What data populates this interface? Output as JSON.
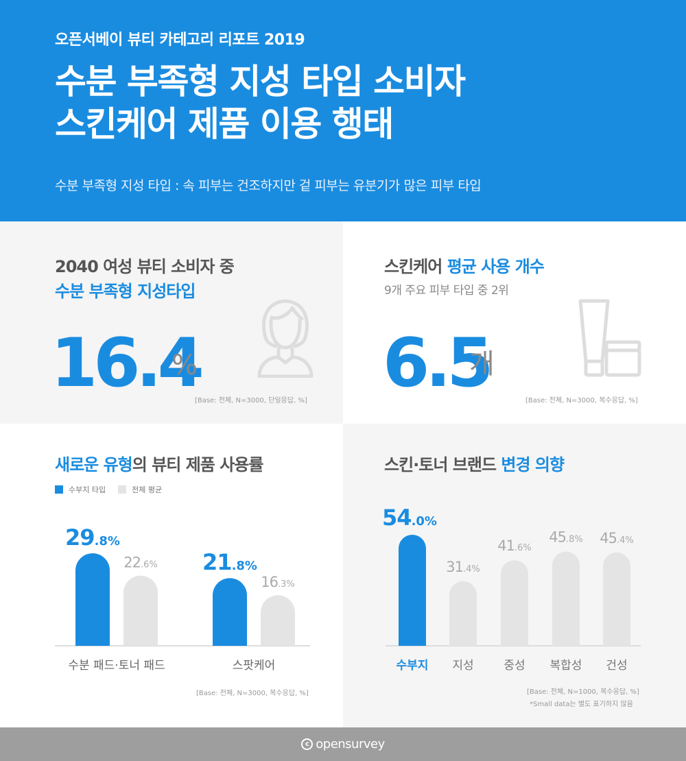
{
  "header": {
    "series": "오픈서베이 뷰티 카테고리 리포트 2019",
    "title_line1": "수분 부족형 지성 타입 소비자",
    "title_line2": "스킨케어 제품 이용 행태",
    "subtitle": "수분 부족형 지성 타입 : 속 피부는 건조하지만 겉 피부는 유분기가 많은 피부 타입"
  },
  "panel1": {
    "title_line1": "2040 여성 뷰티 소비자 중",
    "title_line2": "수분 부족형 지성타입",
    "value": "16.4",
    "unit": "%",
    "icon": "woman-icon",
    "base": "[Base: 전체, N=3000, 단일응답, %]"
  },
  "panel2": {
    "title_plain": "스킨케어 ",
    "title_highlight": "평균 사용 개수",
    "subtitle": "9개 주요 피부 타입 중 2위",
    "value": "6.5",
    "unit": "개",
    "icon": "cosmetics-icon",
    "base": "[Base: 전체, N=3000, 복수응답, %]"
  },
  "panel3": {
    "title_highlight": "새로운 유형",
    "title_plain": "의 뷰티 제품 사용률",
    "base": "[Base: 전체, N=3000, 복수응답, %]"
  },
  "panel4": {
    "title_plain": "스킨·토너 브랜드 ",
    "title_highlight": "변경 의향",
    "base": "[Base: 전체, N=1000, 복수응답, %]",
    "note": "*Small data는 별도 표기하지 않음"
  },
  "colors": {
    "accent": "#1a8ce0",
    "muted": "#e4e4e4",
    "gray_text": "#888888"
  },
  "chart_data": [
    {
      "type": "bar",
      "title": "새로운 유형의 뷰티 제품 사용률",
      "categories": [
        "수분 패드·토너 패드",
        "스팟케어"
      ],
      "series": [
        {
          "name": "수부지 타입",
          "values": [
            29.8,
            21.8
          ],
          "color": "#1a8ce0"
        },
        {
          "name": "전체 평균",
          "values": [
            22.6,
            16.3
          ],
          "color": "#e4e4e4"
        }
      ],
      "unit": "%",
      "legend": "top-left",
      "ylim": [
        0,
        35
      ]
    },
    {
      "type": "bar",
      "title": "스킨·토너 브랜드 변경 의향",
      "categories": [
        "수부지",
        "지성",
        "중성",
        "복합성",
        "건성"
      ],
      "values": [
        54.0,
        31.4,
        41.6,
        45.8,
        45.4
      ],
      "highlight_index": 0,
      "unit": "%",
      "ylim": [
        0,
        60
      ]
    }
  ],
  "footer": {
    "brand": "opensurvey",
    "mark": "c"
  }
}
